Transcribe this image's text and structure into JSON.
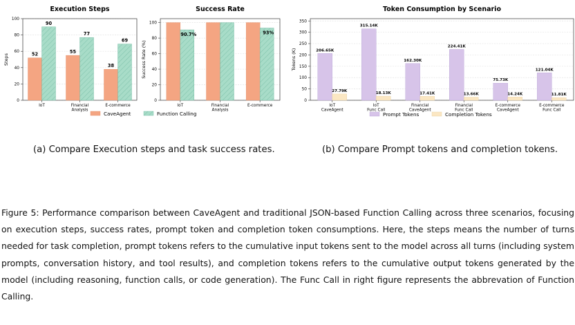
{
  "colors": {
    "cave": "#f4a582",
    "func": "#a8dcc8",
    "prompt": "#d7c4e9",
    "completion": "#fbe7c3"
  },
  "legend_left": [
    "CaveAgent",
    "Function Calling"
  ],
  "legend_right": [
    "Prompt Tokens",
    "Completion Tokens"
  ],
  "chart_data": [
    {
      "type": "bar",
      "title": "Execution Steps",
      "ylabel": "Steps",
      "ylim": [
        0,
        100
      ],
      "yticks": [
        "0",
        "20",
        "40",
        "60",
        "80",
        "100"
      ],
      "categories": [
        [
          "IoT"
        ],
        [
          "Financial",
          "Analysis"
        ],
        [
          "E-commerce"
        ]
      ],
      "series": [
        {
          "name": "CaveAgent",
          "values": [
            52,
            55,
            38
          ],
          "labels": [
            "52",
            "55",
            "38"
          ]
        },
        {
          "name": "Function Calling",
          "values": [
            90,
            77,
            69
          ],
          "labels": [
            "90",
            "77",
            "69"
          ]
        }
      ]
    },
    {
      "type": "bar",
      "title": "Success Rate",
      "ylabel": "Success Rate (%)",
      "ylim": [
        0,
        105
      ],
      "yticks": [
        "0",
        "20",
        "40",
        "60",
        "80",
        "100"
      ],
      "categories": [
        [
          "IoT"
        ],
        [
          "Financial",
          "Analysis"
        ],
        [
          "E-commerce"
        ]
      ],
      "series": [
        {
          "name": "CaveAgent",
          "values": [
            100,
            100,
            100
          ],
          "labels": [
            "",
            "",
            ""
          ]
        },
        {
          "name": "Function Calling",
          "values": [
            90.7,
            100,
            93
          ],
          "labels": [
            "90.7%",
            "",
            "93%"
          ]
        }
      ]
    },
    {
      "type": "bar",
      "title": "Token Consumption by Scenario",
      "ylabel": "Tokens (K)",
      "ylim": [
        0,
        360
      ],
      "yticks": [
        "0",
        "50",
        "100",
        "150",
        "200",
        "250",
        "300",
        "350"
      ],
      "categories": [
        [
          "IoT",
          "CaveAgent"
        ],
        [
          "IoT",
          "Func Call"
        ],
        [
          "Financial",
          "CaveAgent"
        ],
        [
          "Financial",
          "Func Call"
        ],
        [
          "E-commerce",
          "CaveAgent"
        ],
        [
          "E-commerce",
          "Func Call"
        ]
      ],
      "series": [
        {
          "name": "Prompt Tokens",
          "values": [
            206.65,
            315.14,
            162.3,
            224.41,
            75.73,
            121.04
          ],
          "labels": [
            "206.65K",
            "315.14K",
            "162.30K",
            "224.41K",
            "75.73K",
            "121.04K"
          ]
        },
        {
          "name": "Completion Tokens",
          "values": [
            27.79,
            18.13,
            17.41,
            13.66,
            14.24,
            11.81
          ],
          "labels": [
            "27.79K",
            "18.13K",
            "17.41K",
            "13.66K",
            "14.24K",
            "11.81K"
          ]
        }
      ]
    }
  ],
  "captions": {
    "a": "(a) Compare Execution steps and task success rates.",
    "b": "(b) Compare Prompt tokens and completion tokens.",
    "figure": "Figure 5: Performance comparison between CaveAgent and traditional JSON-based Function Calling across three scenarios, focusing on execution steps, success rates, prompt token and completion token consumptions. Here, the steps means the number of turns needed for task completion, prompt tokens refers to the cumulative input tokens sent to the model across all turns (including system prompts, conversation history, and tool results), and completion tokens refers to the cumulative output tokens generated by the model (including reasoning, function calls, or code generation). The Func Call in right figure represents the abbrevation of Function Calling."
  }
}
